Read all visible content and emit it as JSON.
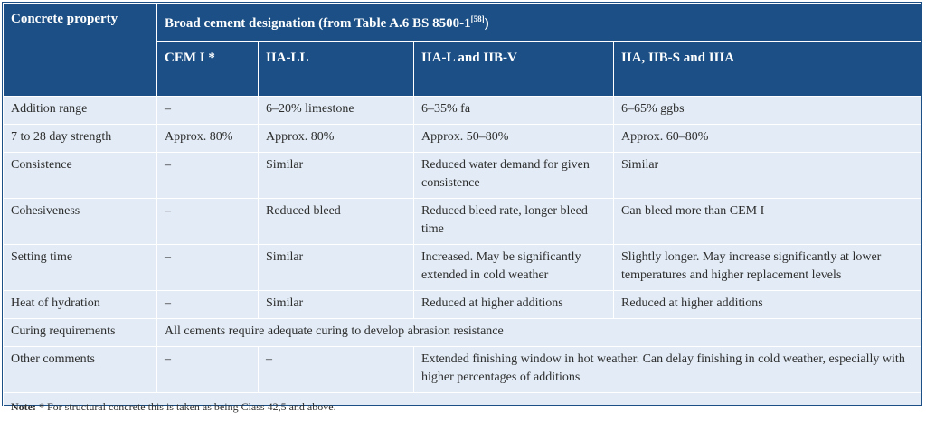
{
  "header": {
    "first": "Concrete property",
    "group": "Broad cement designation (from Table A.6 BS 8500-1",
    "group_ref": "[58]",
    "group_close": ")",
    "columns": [
      "CEM I *",
      "IIA-LL",
      "IIA-L and  IIB-V",
      "IIA, IIB-S and IIIA"
    ]
  },
  "rows": [
    {
      "label": "Addition range",
      "cells": [
        "–",
        "6–20% limestone",
        "6–35% fa",
        "6–65% ggbs"
      ]
    },
    {
      "label": "7 to 28 day strength",
      "cells": [
        "Approx. 80%",
        "Approx. 80%",
        "Approx. 50–80%",
        "Approx. 60–80%"
      ]
    },
    {
      "label": "Consistence",
      "cells": [
        "–",
        "Similar",
        "Reduced water demand for given consistence",
        "Similar"
      ]
    },
    {
      "label": "Cohesiveness",
      "cells": [
        "–",
        "Reduced bleed",
        "Reduced bleed rate, longer bleed time",
        "Can bleed more than CEM I"
      ]
    },
    {
      "label": "Setting time",
      "cells": [
        "–",
        "Similar",
        "Increased. May be significantly extended in cold weather",
        "Slightly longer. May increase significantly at lower temperatures and higher replacement levels"
      ]
    },
    {
      "label": "Heat of hydration",
      "cells": [
        "–",
        "Similar",
        "Reduced at higher additions",
        "Reduced at higher additions"
      ]
    },
    {
      "label": "Curing requirements",
      "cells": [
        "All cements require adequate curing to develop abrasion resistance"
      ]
    },
    {
      "label": "Other comments",
      "cells": [
        "–",
        "–",
        "Extended finishing window in hot weather. Can delay finishing in cold weather, especially with higher percentages of additions"
      ]
    }
  ],
  "note": {
    "label": "Note:",
    "text": " * For structural concrete this is taken as being Class 42,5 and above."
  }
}
